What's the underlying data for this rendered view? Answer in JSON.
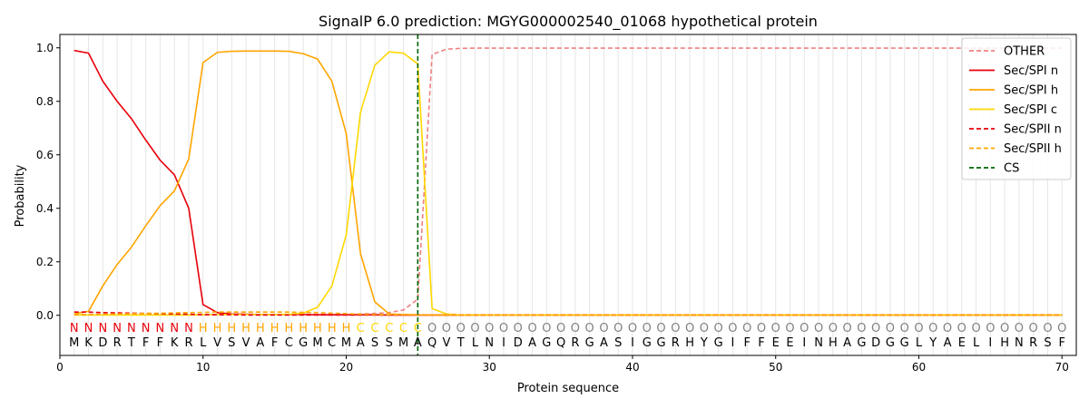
{
  "chart_data": {
    "type": "line",
    "title": "SignalP 6.0 prediction: MGYG000002540_01068 hypothetical protein",
    "xlabel": "Protein sequence",
    "ylabel": "Probability",
    "xlim": [
      0,
      71
    ],
    "ylim": [
      -0.15,
      1.05
    ],
    "xticks": [
      0,
      10,
      20,
      30,
      40,
      50,
      60,
      70
    ],
    "yticks": [
      0.0,
      0.2,
      0.4,
      0.6,
      0.8,
      1.0
    ],
    "xtick_labels": [
      "0",
      "10",
      "20",
      "30",
      "40",
      "50",
      "60",
      "70"
    ],
    "ytick_labels": [
      "0.0",
      "0.2",
      "0.4",
      "0.6",
      "0.8",
      "1.0"
    ],
    "x": [
      1,
      2,
      3,
      4,
      5,
      6,
      7,
      8,
      9,
      10,
      11,
      12,
      13,
      14,
      15,
      16,
      17,
      18,
      19,
      20,
      21,
      22,
      23,
      24,
      25,
      26,
      27,
      28,
      29,
      30,
      31,
      32,
      33,
      34,
      35,
      36,
      37,
      38,
      39,
      40,
      41,
      42,
      43,
      44,
      45,
      46,
      47,
      48,
      49,
      50,
      51,
      52,
      53,
      54,
      55,
      56,
      57,
      58,
      59,
      60,
      61,
      62,
      63,
      64,
      65,
      66,
      67,
      68,
      69,
      70
    ],
    "sequence": [
      "M",
      "K",
      "D",
      "R",
      "T",
      "F",
      "F",
      "K",
      "R",
      "L",
      "V",
      "S",
      "V",
      "A",
      "F",
      "C",
      "G",
      "M",
      "C",
      "M",
      "A",
      "S",
      "S",
      "M",
      "A",
      "Q",
      "V",
      "T",
      "L",
      "N",
      "I",
      "D",
      "A",
      "G",
      "Q",
      "R",
      "G",
      "A",
      "S",
      "I",
      "G",
      "G",
      "R",
      "H",
      "Y",
      "G",
      "I",
      "F",
      "F",
      "E",
      "E",
      "I",
      "N",
      "H",
      "A",
      "G",
      "D",
      "G",
      "G",
      "L",
      "Y",
      "A",
      "E",
      "L",
      "I",
      "H",
      "N",
      "R",
      "S",
      "F"
    ],
    "region_labels": [
      "N",
      "N",
      "N",
      "N",
      "N",
      "N",
      "N",
      "N",
      "N",
      "H",
      "H",
      "H",
      "H",
      "H",
      "H",
      "H",
      "H",
      "H",
      "H",
      "H",
      "C",
      "C",
      "C",
      "C",
      "C",
      "O",
      "O",
      "O",
      "O",
      "O",
      "O",
      "O",
      "O",
      "O",
      "O",
      "O",
      "O",
      "O",
      "O",
      "O",
      "O",
      "O",
      "O",
      "O",
      "O",
      "O",
      "O",
      "O",
      "O",
      "O",
      "O",
      "O",
      "O",
      "O",
      "O",
      "O",
      "O",
      "O",
      "O",
      "O",
      "O",
      "O",
      "O",
      "O",
      "O",
      "O",
      "O",
      "O",
      "O",
      "O"
    ],
    "region_colors": {
      "N": "#e8000b",
      "H": "#ffa500",
      "C": "#ffd700",
      "O": "#808080"
    },
    "series": [
      {
        "name": "OTHER",
        "color": "#f08080",
        "dash": "dashed",
        "values": [
          0.003,
          0.003,
          0.003,
          0.003,
          0.003,
          0.003,
          0.003,
          0.003,
          0.003,
          0.003,
          0.003,
          0.003,
          0.003,
          0.003,
          0.003,
          0.003,
          0.003,
          0.003,
          0.004,
          0.004,
          0.005,
          0.007,
          0.01,
          0.02,
          0.06,
          0.975,
          0.995,
          0.998,
          0.999,
          0.999,
          0.999,
          0.999,
          0.999,
          0.999,
          0.999,
          0.999,
          0.999,
          0.999,
          0.999,
          0.999,
          0.999,
          0.999,
          0.999,
          0.999,
          0.999,
          0.999,
          0.999,
          0.999,
          0.999,
          0.999,
          0.999,
          0.999,
          0.999,
          0.999,
          0.999,
          0.999,
          0.999,
          0.999,
          0.999,
          0.999,
          0.999,
          0.999,
          0.999,
          0.999,
          0.999,
          0.999,
          0.999,
          0.999,
          0.999,
          0.999
        ]
      },
      {
        "name": "Sec/SPI n",
        "color": "#e8000b",
        "dash": "solid",
        "values": [
          0.99,
          0.98,
          0.875,
          0.8,
          0.735,
          0.655,
          0.58,
          0.525,
          0.4,
          0.04,
          0.01,
          0.005,
          0.004,
          0.003,
          0.003,
          0.003,
          0.003,
          0.002,
          0.002,
          0.002,
          0.002,
          0.002,
          0.001,
          0.001,
          0.001,
          0.001,
          0.001,
          0.001,
          0.001,
          0.001,
          0.001,
          0.001,
          0.001,
          0.001,
          0.001,
          0.001,
          0.001,
          0.001,
          0.001,
          0.001,
          0.001,
          0.001,
          0.001,
          0.001,
          0.001,
          0.001,
          0.001,
          0.001,
          0.001,
          0.001,
          0.001,
          0.001,
          0.001,
          0.001,
          0.001,
          0.001,
          0.001,
          0.001,
          0.001,
          0.001,
          0.001,
          0.001,
          0.001,
          0.001,
          0.001,
          0.001,
          0.001,
          0.001,
          0.001,
          0.001
        ]
      },
      {
        "name": "Sec/SPI h",
        "color": "#ffa500",
        "dash": "solid",
        "values": [
          0.005,
          0.015,
          0.11,
          0.19,
          0.255,
          0.335,
          0.41,
          0.465,
          0.585,
          0.945,
          0.983,
          0.987,
          0.988,
          0.988,
          0.988,
          0.987,
          0.978,
          0.958,
          0.875,
          0.68,
          0.23,
          0.05,
          0.005,
          0.003,
          0.002,
          0.001,
          0.001,
          0.001,
          0.001,
          0.001,
          0.001,
          0.001,
          0.001,
          0.001,
          0.001,
          0.001,
          0.001,
          0.001,
          0.001,
          0.001,
          0.001,
          0.001,
          0.001,
          0.001,
          0.001,
          0.001,
          0.001,
          0.001,
          0.001,
          0.001,
          0.001,
          0.001,
          0.001,
          0.001,
          0.001,
          0.001,
          0.001,
          0.001,
          0.001,
          0.001,
          0.001,
          0.001,
          0.001,
          0.001,
          0.001,
          0.001,
          0.001,
          0.001,
          0.001,
          0.001
        ]
      },
      {
        "name": "Sec/SPI c",
        "color": "#ffd700",
        "dash": "solid",
        "values": [
          0.001,
          0.001,
          0.001,
          0.001,
          0.001,
          0.001,
          0.001,
          0.001,
          0.001,
          0.002,
          0.003,
          0.003,
          0.003,
          0.003,
          0.003,
          0.004,
          0.008,
          0.03,
          0.11,
          0.3,
          0.76,
          0.935,
          0.985,
          0.98,
          0.94,
          0.025,
          0.005,
          0.001,
          0.001,
          0.001,
          0.001,
          0.001,
          0.001,
          0.001,
          0.001,
          0.001,
          0.001,
          0.001,
          0.001,
          0.001,
          0.001,
          0.001,
          0.001,
          0.001,
          0.001,
          0.001,
          0.001,
          0.001,
          0.001,
          0.001,
          0.001,
          0.001,
          0.001,
          0.001,
          0.001,
          0.001,
          0.001,
          0.001,
          0.001,
          0.001,
          0.001,
          0.001,
          0.001,
          0.001,
          0.001,
          0.001,
          0.001,
          0.001,
          0.001,
          0.001
        ]
      },
      {
        "name": "Sec/SPII n",
        "color": "#e8000b",
        "dash": "dashed",
        "values": [
          0.012,
          0.012,
          0.01,
          0.009,
          0.008,
          0.007,
          0.006,
          0.005,
          0.004,
          0.002,
          0.002,
          0.002,
          0.001,
          0.001,
          0.001,
          0.001,
          0.001,
          0.001,
          0.001,
          0.001,
          0.001,
          0.001,
          0.001,
          0.001,
          0.001,
          0.001,
          0.001,
          0.001,
          0.001,
          0.001,
          0.001,
          0.001,
          0.001,
          0.001,
          0.001,
          0.001,
          0.001,
          0.001,
          0.001,
          0.001,
          0.001,
          0.001,
          0.001,
          0.001,
          0.001,
          0.001,
          0.001,
          0.001,
          0.001,
          0.001,
          0.001,
          0.001,
          0.001,
          0.001,
          0.001,
          0.001,
          0.001,
          0.001,
          0.001,
          0.001,
          0.001,
          0.001,
          0.001,
          0.001,
          0.001,
          0.001,
          0.001,
          0.001,
          0.001,
          0.001
        ]
      },
      {
        "name": "Sec/SPII h",
        "color": "#ffa500",
        "dash": "dashed",
        "values": [
          0.002,
          0.003,
          0.004,
          0.005,
          0.006,
          0.007,
          0.008,
          0.009,
          0.01,
          0.011,
          0.012,
          0.012,
          0.012,
          0.012,
          0.012,
          0.012,
          0.011,
          0.01,
          0.008,
          0.006,
          0.004,
          0.003,
          0.002,
          0.002,
          0.001,
          0.001,
          0.001,
          0.001,
          0.001,
          0.001,
          0.001,
          0.001,
          0.001,
          0.001,
          0.001,
          0.001,
          0.001,
          0.001,
          0.001,
          0.001,
          0.001,
          0.001,
          0.001,
          0.001,
          0.001,
          0.001,
          0.001,
          0.001,
          0.001,
          0.001,
          0.001,
          0.001,
          0.001,
          0.001,
          0.001,
          0.001,
          0.001,
          0.001,
          0.001,
          0.001,
          0.001,
          0.001,
          0.001,
          0.001,
          0.001,
          0.001,
          0.001,
          0.001,
          0.001,
          0.001
        ]
      }
    ],
    "cs": {
      "name": "CS",
      "x": 25,
      "color": "#006400",
      "dash": "dashed"
    },
    "legend": {
      "placement": "top-right",
      "entries": [
        "OTHER",
        "Sec/SPI n",
        "Sec/SPI h",
        "Sec/SPI c",
        "Sec/SPII n",
        "Sec/SPII h",
        "CS"
      ]
    },
    "grid": "vertical"
  }
}
